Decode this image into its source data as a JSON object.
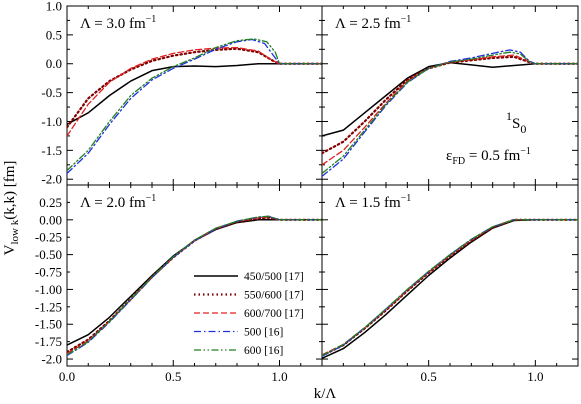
{
  "figure": {
    "ylabel_main": "V",
    "ylabel_sub": "low k",
    "ylabel_rest": "(k,k) [fm]",
    "xlabel": "k/Λ",
    "state_main": "S",
    "state_sup": "1",
    "state_sub": "0",
    "eps_main": "ε",
    "eps_sub": "FD",
    "eps_rest": " = 0.5 fm",
    "eps_sup": "−1"
  },
  "chart_data": [
    {
      "type": "line",
      "panel": "top-left",
      "annotation": {
        "main": "Λ = 3.0 fm",
        "sup": "−1"
      },
      "xlim": [
        0,
        1.2
      ],
      "ylim": [
        -2.1,
        1.0
      ],
      "yticks": [
        "-2.0",
        "-1.5",
        "-1.0",
        "-0.5",
        "0.0",
        "0.5",
        "1.0"
      ],
      "series": [
        {
          "name": "450/500 [17]",
          "color": "#000000",
          "style": "solid",
          "x": [
            0,
            0.1,
            0.2,
            0.3,
            0.4,
            0.5,
            0.6,
            0.7,
            0.8,
            0.9,
            1.0,
            1.2
          ],
          "y": [
            -1.05,
            -0.85,
            -0.55,
            -0.3,
            -0.12,
            -0.05,
            -0.04,
            -0.05,
            -0.03,
            0,
            0,
            0
          ]
        },
        {
          "name": "550/600 [17]",
          "color": "#800000",
          "style": "dotted",
          "x": [
            0,
            0.1,
            0.2,
            0.3,
            0.4,
            0.5,
            0.6,
            0.7,
            0.8,
            0.9,
            0.97,
            1.0,
            1.2
          ],
          "y": [
            -1.1,
            -0.6,
            -0.3,
            -0.1,
            0.05,
            0.14,
            0.2,
            0.24,
            0.26,
            0.2,
            0.05,
            0,
            0
          ]
        },
        {
          "name": "600/700 [17]",
          "color": "#e02020",
          "style": "dashed",
          "x": [
            0,
            0.1,
            0.2,
            0.3,
            0.4,
            0.5,
            0.6,
            0.7,
            0.8,
            0.9,
            0.97,
            1.0,
            1.2
          ],
          "y": [
            -1.25,
            -0.7,
            -0.32,
            -0.08,
            0.08,
            0.18,
            0.24,
            0.27,
            0.28,
            0.22,
            0.05,
            0,
            0
          ]
        },
        {
          "name": "500 [16]",
          "color": "#2030e0",
          "style": "dashdot",
          "x": [
            0,
            0.1,
            0.2,
            0.3,
            0.4,
            0.5,
            0.6,
            0.7,
            0.8,
            0.87,
            0.93,
            0.97,
            1.0,
            1.2
          ],
          "y": [
            -1.9,
            -1.55,
            -1.05,
            -0.6,
            -0.28,
            -0.08,
            0.08,
            0.25,
            0.38,
            0.42,
            0.35,
            0.15,
            0,
            0
          ]
        },
        {
          "name": "600 [16]",
          "color": "#208020",
          "style": "dashdotdot",
          "x": [
            0,
            0.1,
            0.2,
            0.3,
            0.4,
            0.5,
            0.6,
            0.7,
            0.8,
            0.88,
            0.94,
            0.98,
            1.0,
            1.2
          ],
          "y": [
            -1.85,
            -1.5,
            -1.0,
            -0.55,
            -0.25,
            -0.05,
            0.1,
            0.28,
            0.4,
            0.43,
            0.38,
            0.2,
            0,
            0
          ]
        }
      ]
    },
    {
      "type": "line",
      "panel": "top-right",
      "annotation": {
        "main": "Λ = 2.5 fm",
        "sup": "−1"
      },
      "xlim": [
        0,
        1.2
      ],
      "ylim": [
        -2.1,
        1.0
      ],
      "series": [
        {
          "name": "450/500 [17]",
          "color": "#000000",
          "style": "solid",
          "x": [
            0,
            0.1,
            0.2,
            0.3,
            0.4,
            0.5,
            0.6,
            0.7,
            0.8,
            0.9,
            1.0,
            1.2
          ],
          "y": [
            -1.25,
            -1.15,
            -0.85,
            -0.55,
            -0.25,
            -0.05,
            0.02,
            -0.02,
            -0.06,
            -0.03,
            0,
            0
          ]
        },
        {
          "name": "550/600 [17]",
          "color": "#800000",
          "style": "dotted",
          "x": [
            0,
            0.1,
            0.2,
            0.3,
            0.4,
            0.5,
            0.6,
            0.7,
            0.8,
            0.9,
            0.97,
            1.0,
            1.2
          ],
          "y": [
            -1.55,
            -1.35,
            -1.0,
            -0.62,
            -0.28,
            -0.08,
            0.02,
            0.06,
            0.1,
            0.12,
            0.03,
            0,
            0
          ]
        },
        {
          "name": "600/700 [17]",
          "color": "#e02020",
          "style": "dashed",
          "x": [
            0,
            0.1,
            0.2,
            0.3,
            0.4,
            0.5,
            0.6,
            0.7,
            0.8,
            0.9,
            0.97,
            1.0,
            1.2
          ],
          "y": [
            -1.75,
            -1.5,
            -1.1,
            -0.68,
            -0.3,
            -0.08,
            0.03,
            0.07,
            0.12,
            0.15,
            0.04,
            0,
            0
          ]
        },
        {
          "name": "500 [16]",
          "color": "#2030e0",
          "style": "dashdot",
          "x": [
            0,
            0.1,
            0.2,
            0.3,
            0.4,
            0.5,
            0.6,
            0.7,
            0.8,
            0.88,
            0.93,
            0.97,
            1.0,
            1.2
          ],
          "y": [
            -1.95,
            -1.65,
            -1.18,
            -0.72,
            -0.33,
            -0.08,
            0.04,
            0.1,
            0.18,
            0.24,
            0.2,
            0.05,
            0,
            0
          ]
        },
        {
          "name": "600 [16]",
          "color": "#208020",
          "style": "dashdotdot",
          "x": [
            0,
            0.1,
            0.2,
            0.3,
            0.4,
            0.5,
            0.6,
            0.7,
            0.8,
            0.88,
            0.93,
            0.97,
            1.0,
            1.2
          ],
          "y": [
            -1.9,
            -1.6,
            -1.15,
            -0.7,
            -0.32,
            -0.08,
            0.03,
            0.08,
            0.15,
            0.2,
            0.17,
            0.04,
            0,
            0
          ]
        }
      ]
    },
    {
      "type": "line",
      "panel": "bottom-left",
      "annotation": {
        "main": "Λ = 2.0 fm",
        "sup": "−1"
      },
      "xlim": [
        0,
        1.2
      ],
      "ylim": [
        -2.1,
        0.5
      ],
      "xticks": [
        "0.0",
        "0.5",
        "1.0"
      ],
      "yticks": [
        "-2.0",
        "-1.75",
        "-1.50",
        "-1.25",
        "-1.00",
        "-0.75",
        "-0.50",
        "-0.25",
        "0.00",
        "0.25"
      ],
      "series": [
        {
          "name": "450/500 [17]",
          "color": "#000000",
          "style": "solid",
          "x": [
            0,
            0.1,
            0.2,
            0.3,
            0.4,
            0.5,
            0.6,
            0.7,
            0.8,
            0.9,
            1.0,
            1.2
          ],
          "y": [
            -1.8,
            -1.65,
            -1.4,
            -1.1,
            -0.8,
            -0.52,
            -0.3,
            -0.14,
            -0.04,
            0,
            0,
            0
          ]
        },
        {
          "name": "550/600 [17]",
          "color": "#800000",
          "style": "dotted",
          "x": [
            0,
            0.1,
            0.2,
            0.3,
            0.4,
            0.5,
            0.6,
            0.7,
            0.8,
            0.9,
            0.95,
            1.0,
            1.2
          ],
          "y": [
            -1.9,
            -1.72,
            -1.45,
            -1.14,
            -0.82,
            -0.54,
            -0.3,
            -0.13,
            -0.03,
            0.02,
            0.03,
            0,
            0
          ]
        },
        {
          "name": "600/700 [17]",
          "color": "#e02020",
          "style": "dashed",
          "x": [
            0,
            0.1,
            0.2,
            0.3,
            0.4,
            0.5,
            0.6,
            0.7,
            0.8,
            0.9,
            0.95,
            1.0,
            1.2
          ],
          "y": [
            -1.92,
            -1.74,
            -1.46,
            -1.15,
            -0.83,
            -0.54,
            -0.3,
            -0.13,
            -0.02,
            0.03,
            0.04,
            0,
            0
          ]
        },
        {
          "name": "500 [16]",
          "color": "#2030e0",
          "style": "dashdot",
          "x": [
            0,
            0.1,
            0.2,
            0.3,
            0.4,
            0.5,
            0.6,
            0.7,
            0.8,
            0.9,
            0.95,
            1.0,
            1.2
          ],
          "y": [
            -1.95,
            -1.76,
            -1.47,
            -1.15,
            -0.83,
            -0.54,
            -0.3,
            -0.13,
            -0.02,
            0.04,
            0.05,
            0,
            0
          ]
        },
        {
          "name": "600 [16]",
          "color": "#208020",
          "style": "dashdotdot",
          "x": [
            0,
            0.1,
            0.2,
            0.3,
            0.4,
            0.5,
            0.6,
            0.7,
            0.8,
            0.9,
            0.95,
            1.0,
            1.2
          ],
          "y": [
            -1.94,
            -1.75,
            -1.46,
            -1.14,
            -0.82,
            -0.53,
            -0.29,
            -0.12,
            -0.02,
            0.04,
            0.05,
            0,
            0
          ]
        }
      ]
    },
    {
      "type": "line",
      "panel": "bottom-right",
      "annotation": {
        "main": "Λ = 1.5 fm",
        "sup": "−1"
      },
      "xlim": [
        0,
        1.2
      ],
      "ylim": [
        -2.1,
        0.5
      ],
      "xticks": [
        "0.5",
        "1.0"
      ],
      "series": [
        {
          "name": "450/500 [17]",
          "color": "#000000",
          "style": "solid",
          "x": [
            0,
            0.1,
            0.2,
            0.3,
            0.4,
            0.5,
            0.6,
            0.7,
            0.8,
            0.9,
            1.0,
            1.2
          ],
          "y": [
            -1.99,
            -1.85,
            -1.62,
            -1.36,
            -1.08,
            -0.8,
            -0.55,
            -0.32,
            -0.12,
            -0.01,
            0,
            0
          ]
        },
        {
          "name": "550/600 [17]",
          "color": "#800000",
          "style": "dotted",
          "x": [
            0,
            0.1,
            0.2,
            0.3,
            0.4,
            0.5,
            0.6,
            0.7,
            0.8,
            0.9,
            1.0,
            1.2
          ],
          "y": [
            -1.95,
            -1.8,
            -1.56,
            -1.3,
            -1.02,
            -0.76,
            -0.52,
            -0.3,
            -0.11,
            0,
            0,
            0
          ]
        },
        {
          "name": "600/700 [17]",
          "color": "#e02020",
          "style": "dashed",
          "x": [
            0,
            0.1,
            0.2,
            0.3,
            0.4,
            0.5,
            0.6,
            0.7,
            0.8,
            0.9,
            1.0,
            1.2
          ],
          "y": [
            -1.94,
            -1.79,
            -1.55,
            -1.29,
            -1.01,
            -0.75,
            -0.51,
            -0.29,
            -0.1,
            0,
            0,
            0
          ]
        },
        {
          "name": "500 [16]",
          "color": "#2030e0",
          "style": "dashdot",
          "x": [
            0,
            0.1,
            0.2,
            0.3,
            0.4,
            0.5,
            0.6,
            0.7,
            0.8,
            0.9,
            1.0,
            1.2
          ],
          "y": [
            -1.96,
            -1.8,
            -1.55,
            -1.28,
            -1.0,
            -0.74,
            -0.5,
            -0.28,
            -0.1,
            0,
            0,
            0
          ]
        },
        {
          "name": "600 [16]",
          "color": "#208020",
          "style": "dashdotdot",
          "x": [
            0,
            0.1,
            0.2,
            0.3,
            0.4,
            0.5,
            0.6,
            0.7,
            0.8,
            0.9,
            1.0,
            1.2
          ],
          "y": [
            -1.95,
            -1.79,
            -1.55,
            -1.28,
            -1.0,
            -0.74,
            -0.5,
            -0.28,
            -0.1,
            0,
            0,
            0
          ]
        }
      ]
    }
  ]
}
